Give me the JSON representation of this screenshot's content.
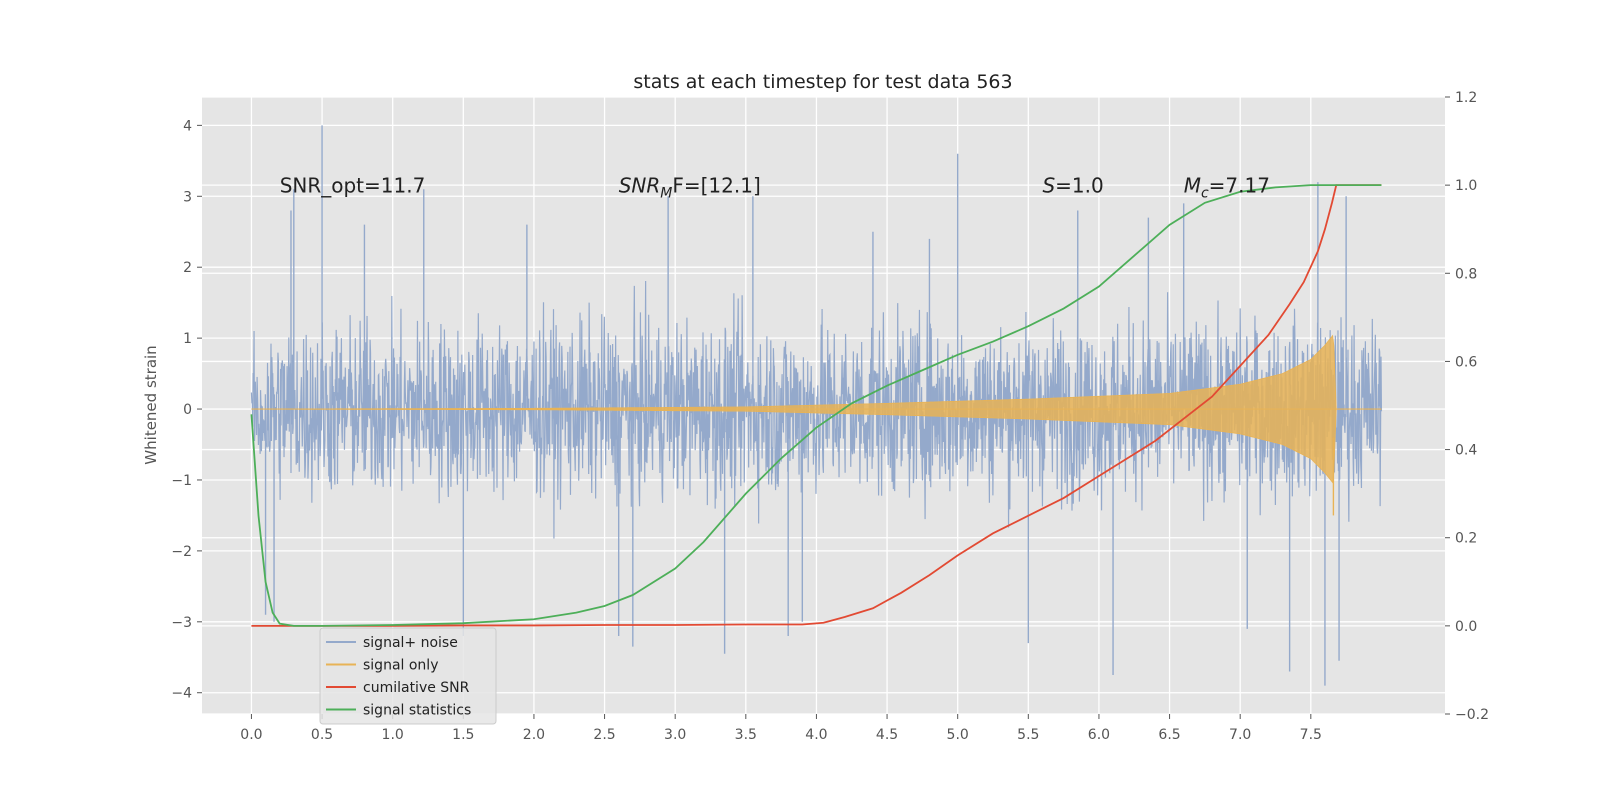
{
  "chart_data": {
    "type": "line",
    "title": "stats at each timestep for test data 563",
    "ylabel": "Whitened strain",
    "xlabel": "",
    "xlim": [
      -0.35,
      8.45
    ],
    "ylim": [
      -4.3,
      4.4
    ],
    "y2lim": [
      -0.2,
      1.2
    ],
    "xticks": [
      "0.0",
      "0.5",
      "1.0",
      "1.5",
      "2.0",
      "2.5",
      "3.0",
      "3.5",
      "4.0",
      "4.5",
      "5.0",
      "5.5",
      "6.0",
      "6.5",
      "7.0",
      "7.5"
    ],
    "yticks": [
      "−4",
      "−3",
      "−2",
      "−1",
      "0",
      "1",
      "2",
      "3",
      "4"
    ],
    "y2ticks": [
      "−0.2",
      "0.0",
      "0.2",
      "0.4",
      "0.6",
      "0.8",
      "1.0",
      "1.2"
    ],
    "grid": true,
    "legend_position": "lower-left",
    "annotations": [
      {
        "text": "SNR_opt=11.7",
        "x": 0.2,
        "y": 3.15
      },
      {
        "text": "SNR",
        "sub": "M",
        "after": "F=[12.1]",
        "italic": true,
        "x": 2.6,
        "y": 3.15
      },
      {
        "text": "S",
        "sub": "",
        "after": "=1.0",
        "italic": true,
        "x": 5.6,
        "y": 3.15
      },
      {
        "text": "M",
        "sub": "c",
        "after": "=7.17",
        "italic": true,
        "x": 6.6,
        "y": 3.15
      }
    ],
    "series": [
      {
        "name": "signal+ noise",
        "color": "#94a9cb",
        "kind": "noise",
        "x_range": [
          0.0,
          8.0
        ],
        "envelope": 2.2,
        "spikes": [
          [
            0.5,
            4.0
          ],
          [
            0.3,
            3.1
          ],
          [
            0.28,
            2.8
          ],
          [
            1.22,
            3.1
          ],
          [
            0.16,
            -3.0
          ],
          [
            0.1,
            -2.9
          ],
          [
            2.7,
            -3.35
          ],
          [
            3.35,
            -3.45
          ],
          [
            3.8,
            -3.2
          ],
          [
            5.0,
            3.6
          ],
          [
            5.5,
            -3.3
          ],
          [
            6.1,
            -3.75
          ],
          [
            7.35,
            -3.7
          ],
          [
            7.55,
            3.2
          ],
          [
            7.6,
            -3.9
          ],
          [
            7.75,
            3.0
          ],
          [
            7.7,
            -3.55
          ],
          [
            3.55,
            3.0
          ],
          [
            2.95,
            3.0
          ],
          [
            4.4,
            2.5
          ],
          [
            1.5,
            -3.2
          ],
          [
            2.6,
            -3.2
          ],
          [
            3.9,
            -3.0
          ],
          [
            6.6,
            2.9
          ],
          [
            1.95,
            2.6
          ],
          [
            4.8,
            2.4
          ],
          [
            6.35,
            2.7
          ],
          [
            7.05,
            -3.1
          ],
          [
            0.8,
            2.6
          ],
          [
            5.85,
            2.8
          ]
        ]
      },
      {
        "name": "signal only",
        "color": "#e8b356",
        "kind": "chirp",
        "x_range": [
          0.0,
          7.68
        ],
        "amplitude_points": [
          [
            0.0,
            0.0
          ],
          [
            2.0,
            0.01
          ],
          [
            3.5,
            0.03
          ],
          [
            4.5,
            0.08
          ],
          [
            5.5,
            0.14
          ],
          [
            6.5,
            0.22
          ],
          [
            7.0,
            0.35
          ],
          [
            7.3,
            0.5
          ],
          [
            7.5,
            0.7
          ],
          [
            7.6,
            0.9
          ],
          [
            7.66,
            1.05
          ],
          [
            7.68,
            0.0
          ]
        ]
      },
      {
        "name": "cumilative SNR",
        "color": "#e24a33",
        "axis": "right",
        "x": [
          0.0,
          0.5,
          1.0,
          1.5,
          2.0,
          2.5,
          3.0,
          3.5,
          3.9,
          4.05,
          4.2,
          4.4,
          4.6,
          4.8,
          5.0,
          5.25,
          5.5,
          5.75,
          6.0,
          6.25,
          6.4,
          6.6,
          6.8,
          7.0,
          7.2,
          7.35,
          7.45,
          7.55,
          7.6,
          7.65,
          7.68,
          8.0
        ],
        "y": [
          0.0,
          0.0,
          0.0,
          0.001,
          0.001,
          0.002,
          0.002,
          0.003,
          0.003,
          0.007,
          0.02,
          0.04,
          0.075,
          0.115,
          0.16,
          0.21,
          0.25,
          0.29,
          0.34,
          0.39,
          0.42,
          0.47,
          0.52,
          0.59,
          0.66,
          0.73,
          0.78,
          0.85,
          0.9,
          0.96,
          1.0,
          1.0
        ]
      },
      {
        "name": "signal statistics",
        "color": "#4daf59",
        "axis": "right",
        "x": [
          0.0,
          0.05,
          0.1,
          0.15,
          0.2,
          0.3,
          0.5,
          1.0,
          1.5,
          2.0,
          2.3,
          2.5,
          2.7,
          3.0,
          3.2,
          3.5,
          3.75,
          4.0,
          4.25,
          4.5,
          4.75,
          5.0,
          5.25,
          5.5,
          5.75,
          6.0,
          6.25,
          6.5,
          6.75,
          7.0,
          7.25,
          7.5,
          8.0
        ],
        "y": [
          0.48,
          0.25,
          0.1,
          0.03,
          0.005,
          0.0,
          0.0,
          0.002,
          0.006,
          0.015,
          0.03,
          0.045,
          0.07,
          0.13,
          0.19,
          0.3,
          0.38,
          0.45,
          0.505,
          0.545,
          0.58,
          0.615,
          0.645,
          0.68,
          0.72,
          0.77,
          0.84,
          0.91,
          0.96,
          0.985,
          0.995,
          1.0,
          1.0
        ]
      }
    ]
  }
}
